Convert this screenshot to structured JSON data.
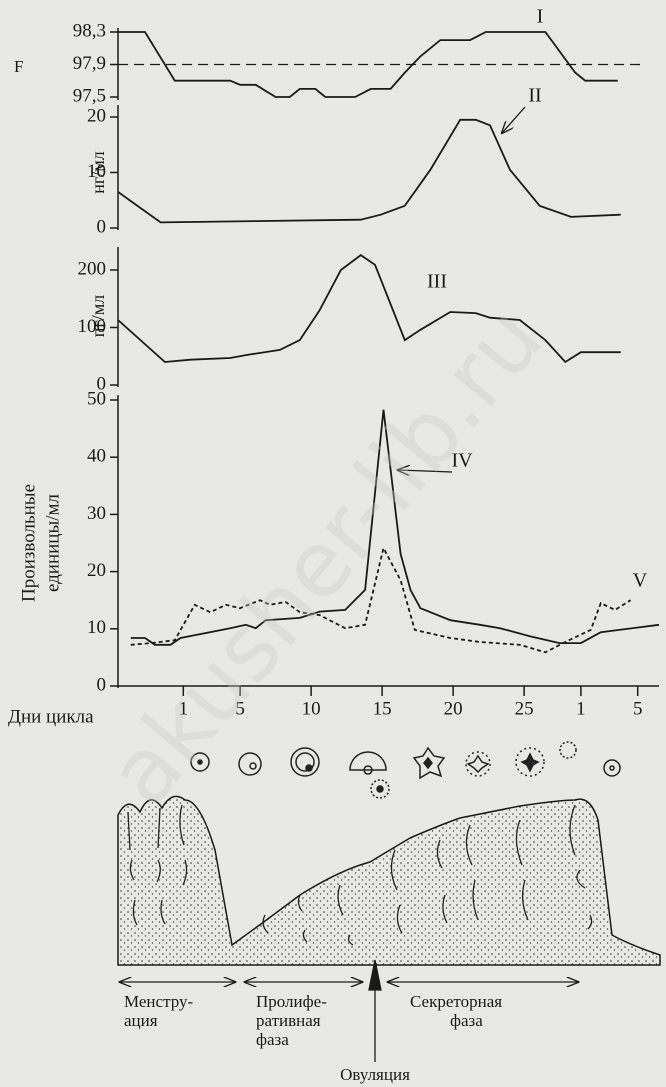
{
  "chart_data": [
    {
      "type": "line",
      "ylabel": "F",
      "xlim": [
        -3.6,
        34.5
      ],
      "ylim": [
        97.5,
        98.3
      ],
      "yticks": [
        {
          "value": 98.3,
          "label": "98,3"
        },
        {
          "value": 97.9,
          "label": "97,9"
        },
        {
          "value": 97.5,
          "label": "97,5"
        }
      ],
      "reference_line": 97.9,
      "series": [
        {
          "name": "I",
          "color": "#1a1a1a",
          "dashed": false,
          "x": [
            -3.6,
            -1.7,
            0.4,
            4.3,
            5.0,
            6.1,
            7.5,
            8.5,
            9.2,
            10.3,
            11.0,
            13.1,
            14.2,
            15.6,
            16.6,
            17.7,
            19.1,
            21.2,
            22.3,
            26.5,
            28.6,
            29.3,
            31.6
          ],
          "values": [
            98.3,
            98.3,
            97.7,
            97.7,
            97.65,
            97.65,
            97.5,
            97.5,
            97.6,
            97.6,
            97.5,
            97.5,
            97.6,
            97.6,
            97.8,
            98.0,
            98.2,
            98.2,
            98.3,
            98.3,
            97.8,
            97.7,
            97.7
          ]
        }
      ]
    },
    {
      "type": "line",
      "ylabel": "нг/мл",
      "xlim": [
        -3.6,
        34.5
      ],
      "ylim": [
        0,
        20
      ],
      "yticks": [
        0,
        10,
        20
      ],
      "series": [
        {
          "name": "II",
          "color": "#1a1a1a",
          "dashed": false,
          "x": [
            -3.6,
            -0.6,
            13.5,
            14.9,
            16.6,
            18.4,
            20.5,
            21.6,
            22.6,
            24.0,
            26.1,
            28.3,
            31.8
          ],
          "values": [
            6.5,
            1,
            1.5,
            2.4,
            4,
            10.5,
            19.5,
            19.5,
            18.5,
            10.5,
            4,
            2,
            2.4
          ]
        }
      ]
    },
    {
      "type": "line",
      "ylabel": "пг/мл",
      "xlim": [
        -3.6,
        34.5
      ],
      "ylim": [
        0,
        240
      ],
      "yticks": [
        0,
        100,
        200
      ],
      "series": [
        {
          "name": "III",
          "color": "#1a1a1a",
          "dashed": false,
          "x": [
            -3.6,
            -0.3,
            1.5,
            4.3,
            5.4,
            7.8,
            9.2,
            10.6,
            12.1,
            13.5,
            14.5,
            16.6,
            17.7,
            19.8,
            21.6,
            22.6,
            24.7,
            26.5,
            27.9,
            29.0,
            31.8
          ],
          "values": [
            113,
            40,
            44,
            47,
            52,
            61,
            78,
            130,
            200,
            226,
            209,
            78,
            96,
            127,
            125,
            117,
            113,
            78,
            40,
            57,
            57
          ]
        }
      ]
    },
    {
      "type": "line",
      "ylabel": [
        "Произвольные",
        "единицы/мл"
      ],
      "xlabel": "Дни цикла",
      "xlim": [
        -3.6,
        34.5
      ],
      "ylim": [
        0,
        50
      ],
      "yticks": [
        0,
        10,
        20,
        30,
        40,
        50
      ],
      "xticks": [
        1,
        5,
        10,
        15,
        20,
        25,
        {
          "value": 29,
          "label": "1"
        },
        {
          "value": 33,
          "label": "5"
        }
      ],
      "series": [
        {
          "name": "IV",
          "color": "#1a1a1a",
          "dashed": false,
          "x": [
            -2.7,
            -1.7,
            -1.0,
            0.1,
            0.8,
            4.3,
            5.4,
            6.1,
            6.8,
            9.2,
            10.6,
            12.4,
            13.8,
            15.1,
            16.3,
            17.0,
            17.7,
            19.8,
            21.9,
            23.3,
            25.4,
            27.5,
            29.0,
            30.4,
            34.5
          ],
          "values": [
            8.4,
            8.4,
            7.2,
            7.2,
            8.4,
            10.1,
            10.7,
            10.1,
            11.5,
            11.9,
            13,
            13.3,
            16.8,
            48.3,
            23.1,
            16.8,
            13.6,
            11.5,
            10.7,
            10.1,
            8.7,
            7.5,
            7.5,
            9.4,
            10.7
          ]
        },
        {
          "name": "V",
          "color": "#1a1a1a",
          "dashed": true,
          "x": [
            -2.7,
            -1.3,
            0.4,
            1.8,
            2.9,
            4.0,
            5.0,
            6.4,
            7.1,
            8.2,
            9.2,
            10.6,
            12.4,
            13.8,
            15.1,
            16.3,
            17.3,
            19.8,
            21.9,
            24.7,
            26.5,
            27.9,
            29.7,
            30.4,
            31.4,
            32.5
          ],
          "values": [
            7.2,
            7.5,
            8,
            14.2,
            12.9,
            14.2,
            13.6,
            15,
            14.2,
            14.7,
            12.9,
            12.4,
            10.1,
            10.7,
            24.1,
            18.5,
            9.8,
            8.4,
            7.7,
            7.2,
            5.9,
            7.7,
            9.8,
            14.5,
            13.3,
            15
          ]
        }
      ]
    }
  ],
  "diagram": {
    "phases": [
      [
        "Менстру-",
        "ация"
      ],
      [
        "Пролифе-",
        "ративная",
        "фаза"
      ],
      [
        "Секреторная",
        "фаза"
      ]
    ],
    "ovulation": "Овуляция"
  },
  "watermark": "akusher-lib.ru"
}
